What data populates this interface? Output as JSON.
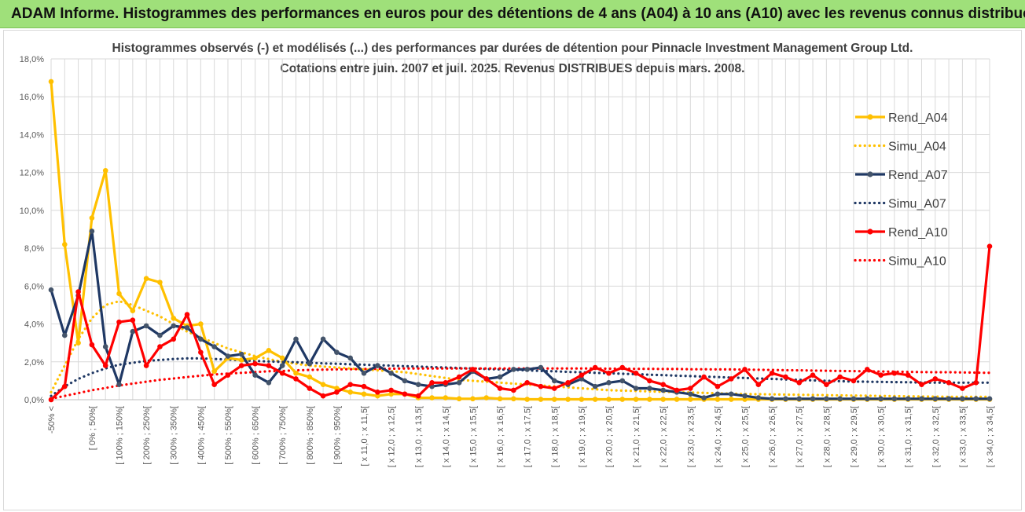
{
  "banner": {
    "title": "ADAM Informe. Histogrammes des performances en euros pour des détentions de 4 ans (A04) à 10 ans (A10) avec les revenus connus distribués"
  },
  "colors": {
    "banner_bg": "#9fe07a",
    "A04": "#ffc000",
    "A07": "#1f3864",
    "A10": "#ff0000",
    "grid": "#d9d9d9"
  },
  "chart_data": {
    "type": "line",
    "title": "Histogrammes observés (-) et modélisés (...) des performances par durées de détention pour Pinnacle Investment Management Group Ltd.",
    "subtitle": "Cotations entre juin. 2007 et juil. 2025. Revenus DISTRIBUES depuis mars. 2008.",
    "ylim": [
      0,
      18
    ],
    "yticks": [
      "0,0%",
      "2,0%",
      "4,0%",
      "6,0%",
      "8,0%",
      "10,0%",
      "12,0%",
      "14,0%",
      "16,0%",
      "18,0%"
    ],
    "grid": true,
    "legend_position": "right",
    "x_count": 70,
    "x_labels": [
      {
        "i": 0,
        "text": "-50% <"
      },
      {
        "i": 1,
        "text": ""
      },
      {
        "i": 2,
        "text": ""
      },
      {
        "i": 3,
        "text": "[ 0% ; 50%["
      },
      {
        "i": 4,
        "text": ""
      },
      {
        "i": 5,
        "text": "[ 100% ; 150%["
      },
      {
        "i": 6,
        "text": ""
      },
      {
        "i": 7,
        "text": "[ 200% ; 250%["
      },
      {
        "i": 8,
        "text": ""
      },
      {
        "i": 9,
        "text": "[ 300% ; 350%["
      },
      {
        "i": 10,
        "text": ""
      },
      {
        "i": 11,
        "text": "[ 400% ; 450%["
      },
      {
        "i": 12,
        "text": ""
      },
      {
        "i": 13,
        "text": "[ 500% ; 550%["
      },
      {
        "i": 14,
        "text": ""
      },
      {
        "i": 15,
        "text": "[ 600% ; 650%["
      },
      {
        "i": 16,
        "text": ""
      },
      {
        "i": 17,
        "text": "[ 700% ; 750%["
      },
      {
        "i": 18,
        "text": ""
      },
      {
        "i": 19,
        "text": "[ 800% ; 850%["
      },
      {
        "i": 20,
        "text": ""
      },
      {
        "i": 21,
        "text": "[ 900% ; 950%["
      },
      {
        "i": 22,
        "text": ""
      },
      {
        "i": 23,
        "text": "[ x 11,0 ; x 11,5["
      },
      {
        "i": 24,
        "text": ""
      },
      {
        "i": 25,
        "text": "[ x 12,0 ; x 12,5["
      },
      {
        "i": 26,
        "text": ""
      },
      {
        "i": 27,
        "text": "[ x 13,0 ; x 13,5["
      },
      {
        "i": 28,
        "text": ""
      },
      {
        "i": 29,
        "text": "[ x 14,0 ; x 14,5["
      },
      {
        "i": 30,
        "text": ""
      },
      {
        "i": 31,
        "text": "[ x 15,0 ; x 15,5["
      },
      {
        "i": 32,
        "text": ""
      },
      {
        "i": 33,
        "text": "[ x 16,0 ; x 16,5["
      },
      {
        "i": 34,
        "text": ""
      },
      {
        "i": 35,
        "text": "[ x 17,0 ; x 17,5["
      },
      {
        "i": 36,
        "text": ""
      },
      {
        "i": 37,
        "text": "[ x 18,0 ; x 18,5["
      },
      {
        "i": 38,
        "text": ""
      },
      {
        "i": 39,
        "text": "[ x 19,0 ; x 19,5["
      },
      {
        "i": 40,
        "text": ""
      },
      {
        "i": 41,
        "text": "[ x 20,0 ; x 20,5["
      },
      {
        "i": 42,
        "text": ""
      },
      {
        "i": 43,
        "text": "[ x 21,0 ; x 21,5["
      },
      {
        "i": 44,
        "text": ""
      },
      {
        "i": 45,
        "text": "[ x 22,0 ; x 22,5["
      },
      {
        "i": 46,
        "text": ""
      },
      {
        "i": 47,
        "text": "[ x 23,0 ; x 23,5["
      },
      {
        "i": 48,
        "text": ""
      },
      {
        "i": 49,
        "text": "[ x 24,0 ; x 24,5["
      },
      {
        "i": 50,
        "text": ""
      },
      {
        "i": 51,
        "text": "[ x 25,0 ; x 25,5["
      },
      {
        "i": 52,
        "text": ""
      },
      {
        "i": 53,
        "text": "[ x 26,0 ; x 26,5["
      },
      {
        "i": 54,
        "text": ""
      },
      {
        "i": 55,
        "text": "[ x 27,0 ; x 27,5["
      },
      {
        "i": 56,
        "text": ""
      },
      {
        "i": 57,
        "text": "[ x 28,0 ; x 28,5["
      },
      {
        "i": 58,
        "text": ""
      },
      {
        "i": 59,
        "text": "[ x 29,0 ; x 29,5["
      },
      {
        "i": 60,
        "text": ""
      },
      {
        "i": 61,
        "text": "[ x 30,0 ; x 30,5["
      },
      {
        "i": 62,
        "text": ""
      },
      {
        "i": 63,
        "text": "[ x 31,0 ; x 31,5["
      },
      {
        "i": 64,
        "text": ""
      },
      {
        "i": 65,
        "text": "[ x 32,0 ; x 32,5["
      },
      {
        "i": 66,
        "text": ""
      },
      {
        "i": 67,
        "text": "[ x 33,0 ; x 33,5["
      },
      {
        "i": 68,
        "text": ""
      },
      {
        "i": 69,
        "text": "[ x 34,0 ; x 34,5["
      }
    ],
    "series": [
      {
        "name": "Rend_A04",
        "style": "solid",
        "color": "#ffc000",
        "values": [
          16.8,
          8.2,
          3.0,
          9.6,
          12.1,
          5.6,
          4.7,
          6.4,
          6.2,
          4.3,
          3.9,
          4.0,
          1.5,
          2.2,
          2.1,
          2.2,
          2.6,
          2.2,
          1.4,
          1.2,
          0.8,
          0.6,
          0.4,
          0.3,
          0.2,
          0.3,
          0.3,
          0.1,
          0.1,
          0.1,
          0.05,
          0.05,
          0.1,
          0.05,
          0.05,
          0.02,
          0.02,
          0.02,
          0.02,
          0.02,
          0.02,
          0.02,
          0.02,
          0.02,
          0.02,
          0.02,
          0.02,
          0.02,
          0.02,
          0.02,
          0.02,
          0.02,
          0.02,
          0.02,
          0.02,
          0.02,
          0.02,
          0.02,
          0.02,
          0.02,
          0.02,
          0.02,
          0.02,
          0.02,
          0.02,
          0.02,
          0.02,
          0.02,
          0.02,
          0.02
        ]
      },
      {
        "name": "Simu_A04",
        "style": "dotted",
        "color": "#ffc000",
        "values": [
          0.4,
          1.8,
          3.2,
          4.3,
          5.0,
          5.2,
          5.0,
          4.7,
          4.4,
          4.0,
          3.6,
          3.3,
          3.0,
          2.7,
          2.5,
          2.3,
          2.15,
          2.0,
          1.9,
          1.8,
          1.75,
          1.7,
          1.65,
          1.6,
          1.55,
          1.5,
          1.45,
          1.35,
          1.25,
          1.15,
          1.05,
          1.0,
          0.95,
          0.9,
          0.85,
          0.8,
          0.75,
          0.7,
          0.65,
          0.6,
          0.55,
          0.5,
          0.48,
          0.46,
          0.44,
          0.42,
          0.4,
          0.38,
          0.36,
          0.34,
          0.32,
          0.3,
          0.29,
          0.28,
          0.27,
          0.26,
          0.25,
          0.24,
          0.23,
          0.22,
          0.21,
          0.2,
          0.19,
          0.18,
          0.17,
          0.16,
          0.15,
          0.15,
          0.15,
          0.15
        ]
      },
      {
        "name": "Rend_A07",
        "style": "solid",
        "color": "#1f3864",
        "values": [
          5.8,
          3.4,
          5.5,
          8.9,
          2.8,
          0.8,
          3.6,
          3.9,
          3.4,
          3.9,
          3.8,
          3.2,
          2.8,
          2.3,
          2.4,
          1.3,
          0.9,
          1.8,
          3.2,
          1.9,
          3.2,
          2.5,
          2.2,
          1.4,
          1.8,
          1.4,
          1.0,
          0.8,
          0.7,
          0.8,
          0.9,
          1.5,
          1.1,
          1.2,
          1.6,
          1.6,
          1.7,
          1.0,
          0.8,
          1.1,
          0.7,
          0.9,
          1.0,
          0.6,
          0.6,
          0.5,
          0.4,
          0.3,
          0.1,
          0.3,
          0.3,
          0.2,
          0.1,
          0.05,
          0.05,
          0.05,
          0.05,
          0.05,
          0.05,
          0.05,
          0.05,
          0.05,
          0.05,
          0.05,
          0.05,
          0.05,
          0.05,
          0.05,
          0.05,
          0.05
        ]
      },
      {
        "name": "Simu_A07",
        "style": "dotted",
        "color": "#1f3864",
        "values": [
          0.2,
          0.7,
          1.1,
          1.4,
          1.65,
          1.85,
          1.95,
          2.05,
          2.1,
          2.15,
          2.18,
          2.18,
          2.15,
          2.12,
          2.08,
          2.05,
          2.02,
          2.0,
          1.98,
          1.95,
          1.92,
          1.9,
          1.87,
          1.85,
          1.82,
          1.8,
          1.77,
          1.75,
          1.72,
          1.7,
          1.67,
          1.65,
          1.62,
          1.6,
          1.57,
          1.55,
          1.52,
          1.5,
          1.47,
          1.45,
          1.42,
          1.4,
          1.37,
          1.35,
          1.32,
          1.3,
          1.27,
          1.25,
          1.22,
          1.2,
          1.17,
          1.15,
          1.12,
          1.1,
          1.07,
          1.05,
          1.02,
          1.0,
          0.98,
          0.96,
          0.95,
          0.94,
          0.93,
          0.92,
          0.91,
          0.9,
          0.9,
          0.9,
          0.9,
          0.9
        ]
      },
      {
        "name": "Rend_A10",
        "style": "solid",
        "color": "#ff0000",
        "values": [
          0.0,
          0.7,
          5.7,
          2.9,
          1.8,
          4.1,
          4.2,
          1.8,
          2.8,
          3.2,
          4.5,
          2.5,
          0.8,
          1.3,
          1.8,
          1.9,
          1.8,
          1.4,
          1.1,
          0.6,
          0.2,
          0.4,
          0.8,
          0.7,
          0.4,
          0.5,
          0.3,
          0.2,
          0.9,
          0.9,
          1.2,
          1.6,
          1.1,
          0.6,
          0.5,
          0.9,
          0.7,
          0.6,
          0.9,
          1.3,
          1.7,
          1.4,
          1.7,
          1.4,
          1.0,
          0.8,
          0.5,
          0.6,
          1.2,
          0.7,
          1.1,
          1.6,
          0.8,
          1.4,
          1.2,
          0.9,
          1.3,
          0.8,
          1.2,
          1.0,
          1.6,
          1.3,
          1.4,
          1.3,
          0.8,
          1.1,
          0.9,
          0.6,
          0.9,
          8.1
        ]
      },
      {
        "name": "Simu_A10",
        "style": "dotted",
        "color": "#ff0000",
        "values": [
          0.05,
          0.2,
          0.35,
          0.5,
          0.62,
          0.75,
          0.85,
          0.95,
          1.05,
          1.12,
          1.2,
          1.27,
          1.33,
          1.38,
          1.42,
          1.46,
          1.5,
          1.52,
          1.55,
          1.57,
          1.59,
          1.6,
          1.61,
          1.62,
          1.63,
          1.64,
          1.65,
          1.65,
          1.65,
          1.65,
          1.65,
          1.65,
          1.65,
          1.65,
          1.65,
          1.65,
          1.65,
          1.65,
          1.65,
          1.65,
          1.65,
          1.64,
          1.64,
          1.63,
          1.63,
          1.62,
          1.62,
          1.61,
          1.61,
          1.6,
          1.6,
          1.59,
          1.58,
          1.57,
          1.56,
          1.55,
          1.54,
          1.53,
          1.52,
          1.51,
          1.5,
          1.49,
          1.48,
          1.47,
          1.46,
          1.45,
          1.45,
          1.44,
          1.43,
          1.42
        ]
      }
    ]
  }
}
